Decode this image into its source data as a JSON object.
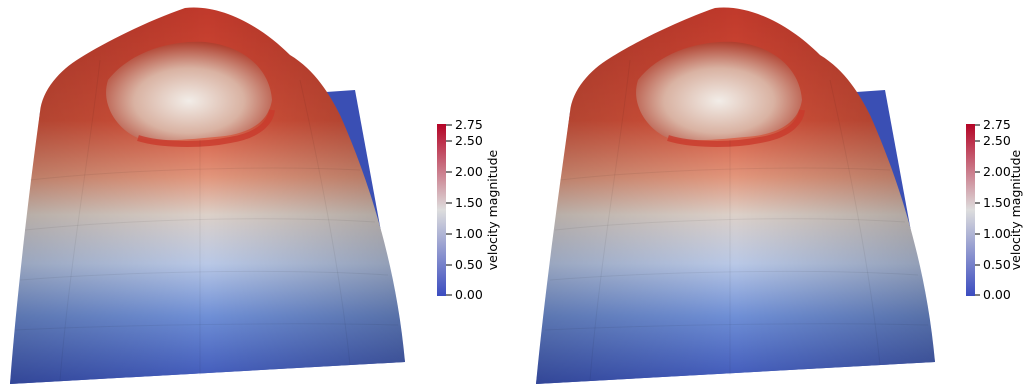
{
  "panels": [
    {
      "legend": {
        "title": "velocity magnitude",
        "ticks": [
          "2.75",
          "2.50",
          "2.00",
          "1.50",
          "1.00",
          "0.50",
          "0.00"
        ],
        "tick_values": [
          2.75,
          2.5,
          2.0,
          1.5,
          1.0,
          0.5,
          0.0
        ],
        "range": [
          0.0,
          2.75
        ]
      }
    },
    {
      "legend": {
        "title": "velocity magnitude",
        "ticks": [
          "2.75",
          "2.50",
          "2.00",
          "1.50",
          "1.00",
          "0.50",
          "0.00"
        ],
        "tick_values": [
          2.75,
          2.5,
          2.0,
          1.5,
          1.0,
          0.5,
          0.0
        ],
        "range": [
          0.0,
          2.75
        ]
      }
    }
  ],
  "colormap": {
    "low": "#3b4cc0",
    "mid": "#dddddd",
    "high": "#b40426"
  }
}
